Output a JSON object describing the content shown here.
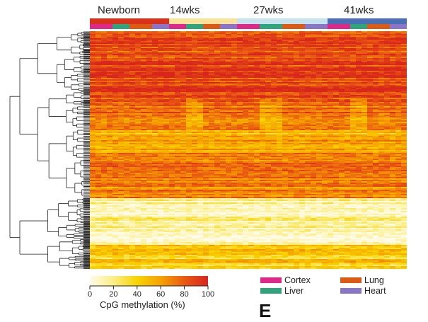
{
  "chart_data": {
    "type": "heatmap",
    "title": "",
    "colorbar": {
      "label": "CpG methylation (%)",
      "ticks": [
        "0",
        "20",
        "40",
        "60",
        "80",
        "100"
      ],
      "range": [
        0,
        100
      ],
      "stops": [
        {
          "value": 0,
          "color": "#fffbe8"
        },
        {
          "value": 20,
          "color": "#fcee86"
        },
        {
          "value": 40,
          "color": "#f8d400"
        },
        {
          "value": 60,
          "color": "#f5a300"
        },
        {
          "value": 80,
          "color": "#ea5a12"
        },
        {
          "value": 100,
          "color": "#d8261c"
        }
      ]
    },
    "age_groups": [
      {
        "label": "Newborn",
        "color": "#d9311b",
        "samples_per_tissue": [
          4,
          3,
          4,
          3
        ]
      },
      {
        "label": "14wks",
        "color": "#fbe29a",
        "samples_per_tissue": [
          3,
          3,
          3,
          3
        ]
      },
      {
        "label": "27wks",
        "color": "#c5e3ee",
        "samples_per_tissue": [
          4,
          4,
          4,
          4
        ]
      },
      {
        "label": "41wks",
        "color": "#4a6fb4",
        "samples_per_tissue": [
          4,
          3,
          4,
          3
        ]
      }
    ],
    "tissues": [
      {
        "label": "Cortex",
        "color": "#e0288a"
      },
      {
        "label": "Liver",
        "color": "#2ea57a"
      },
      {
        "label": "Lung",
        "color": "#dd5a12"
      },
      {
        "label": "Heart",
        "color": "#8a75c9"
      }
    ],
    "row_clusters": [
      {
        "rows": 48,
        "mean_methylation": 88
      },
      {
        "rows": 22,
        "mean_methylation": 76
      },
      {
        "rows": 16,
        "mean_methylation": 55
      },
      {
        "rows": 32,
        "mean_methylation": 70
      },
      {
        "rows": 33,
        "mean_methylation": 12
      },
      {
        "rows": 17,
        "mean_methylation": 42
      }
    ]
  },
  "panel_label": "E"
}
